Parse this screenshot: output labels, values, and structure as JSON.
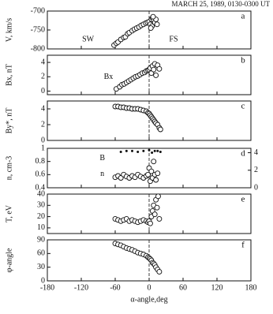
{
  "chart_data": [
    {
      "type": "scatter",
      "title": "MARCH 25, 1989, 0130-0300 UT",
      "ylabel": "V, km/s",
      "panel_label": "a",
      "annotations": [
        "SW",
        "FS"
      ],
      "xlim": [
        -180,
        180
      ],
      "xticks": [
        -180,
        -120,
        -60,
        0,
        60,
        120,
        180
      ],
      "ylim": [
        -800,
        -700
      ],
      "yticks": [
        -800,
        -750,
        -700
      ],
      "series": [
        {
          "color": "#111",
          "x": [
            -62,
            -58,
            -55,
            -50,
            -45,
            -42,
            -38,
            -35,
            -30,
            -26,
            -22,
            -18,
            -14,
            -10,
            -6,
            -3,
            0,
            2,
            4,
            5,
            6,
            8,
            10,
            12,
            14,
            3,
            7
          ],
          "y": [
            -790,
            -785,
            -782,
            -775,
            -770,
            -768,
            -760,
            -757,
            -752,
            -748,
            -745,
            -742,
            -738,
            -735,
            -732,
            -730,
            -728,
            -735,
            -722,
            -740,
            -718,
            -725,
            -730,
            -722,
            -735,
            -745,
            -715
          ]
        }
      ]
    },
    {
      "type": "scatter",
      "ylabel": "Bx, nT",
      "panel_label": "b",
      "annotations": [
        "Bx"
      ],
      "xlim": [
        -180,
        180
      ],
      "xticks": [
        -180,
        -120,
        -60,
        0,
        60,
        120,
        180
      ],
      "ylim": [
        -0.5,
        5
      ],
      "yticks": [
        0,
        2,
        4
      ],
      "series": [
        {
          "color": "#111",
          "x": [
            -58,
            -52,
            -48,
            -44,
            -40,
            -36,
            -32,
            -28,
            -24,
            -20,
            -16,
            -12,
            -8,
            -5,
            -2,
            0,
            2,
            4,
            6,
            8,
            10,
            12,
            15,
            18
          ],
          "y": [
            0.3,
            0.6,
            0.9,
            1.0,
            1.2,
            1.4,
            1.6,
            1.8,
            2.0,
            2.1,
            2.3,
            2.5,
            2.6,
            2.8,
            2.9,
            3.0,
            3.2,
            2.5,
            3.5,
            3.0,
            3.8,
            2.2,
            3.6,
            3.1
          ]
        }
      ]
    },
    {
      "type": "scatter",
      "ylabel": "By*, nT",
      "panel_label": "c",
      "annotations": [],
      "xlim": [
        -180,
        180
      ],
      "xticks": [
        -180,
        -120,
        -60,
        0,
        60,
        120,
        180
      ],
      "ylim": [
        0,
        5
      ],
      "yticks": [
        0,
        2,
        4
      ],
      "series": [
        {
          "color": "#111",
          "x": [
            -60,
            -55,
            -50,
            -45,
            -40,
            -35,
            -30,
            -25,
            -20,
            -15,
            -10,
            -5,
            -2,
            0,
            2,
            4,
            6,
            8,
            10,
            12,
            15,
            18,
            20
          ],
          "y": [
            4.3,
            4.3,
            4.2,
            4.2,
            4.1,
            4.1,
            4.0,
            4.0,
            4.0,
            3.9,
            3.8,
            3.7,
            3.5,
            3.4,
            3.2,
            3.0,
            2.8,
            2.6,
            2.4,
            2.2,
            2.0,
            1.6,
            1.4
          ]
        }
      ]
    },
    {
      "type": "scatter",
      "ylabel": "n, cm-3",
      "panel_label": "d",
      "annotations": [],
      "xlim": [
        -180,
        180
      ],
      "xticks": [
        -180,
        -120,
        -60,
        0,
        60,
        120,
        180
      ],
      "ylim": [
        0.4,
        1
      ],
      "yticks": [
        0.4,
        0.6,
        0.8,
        1
      ],
      "y2lim": [
        0,
        4.5
      ],
      "y2ticks": [
        0,
        2,
        4
      ],
      "series": [
        {
          "name": "B",
          "color": "#111",
          "axis": "y2",
          "x": [
            -50,
            -40,
            -30,
            -20,
            -10,
            0,
            5,
            10,
            15,
            20
          ],
          "y": [
            4.1,
            4.2,
            4.2,
            4.1,
            4.2,
            4.3,
            4.0,
            4.2,
            4.2,
            4.1
          ]
        },
        {
          "name": "n",
          "color": "#111",
          "x": [
            -60,
            -55,
            -50,
            -45,
            -40,
            -35,
            -30,
            -25,
            -20,
            -15,
            -10,
            -5,
            -2,
            0,
            2,
            4,
            6,
            8,
            10,
            12,
            15
          ],
          "y": [
            0.56,
            0.58,
            0.55,
            0.6,
            0.57,
            0.55,
            0.58,
            0.56,
            0.6,
            0.57,
            0.55,
            0.58,
            0.6,
            0.7,
            0.5,
            0.65,
            0.55,
            0.8,
            0.6,
            0.52,
            0.62
          ]
        }
      ]
    },
    {
      "type": "scatter",
      "ylabel": "T, eV",
      "panel_label": "e",
      "annotations": [],
      "xlim": [
        -180,
        180
      ],
      "xticks": [
        -180,
        -120,
        -60,
        0,
        60,
        120,
        180
      ],
      "ylim": [
        5,
        40
      ],
      "yticks": [
        10,
        20,
        30,
        40
      ],
      "series": [
        {
          "color": "#111",
          "x": [
            -60,
            -55,
            -50,
            -45,
            -40,
            -35,
            -30,
            -25,
            -20,
            -15,
            -10,
            -5,
            -2,
            0,
            2,
            4,
            6,
            8,
            10,
            12,
            14,
            16,
            18
          ],
          "y": [
            18,
            17,
            16,
            17,
            18,
            16,
            17,
            16,
            15,
            16,
            17,
            16,
            15,
            16,
            14,
            20,
            25,
            30,
            22,
            35,
            28,
            38,
            18
          ]
        }
      ]
    },
    {
      "type": "scatter",
      "ylabel": "φ-angle",
      "panel_label": "f",
      "annotations": [],
      "xlabel": "α-angle,deg",
      "xlim": [
        -180,
        180
      ],
      "xticks": [
        -180,
        -120,
        -60,
        0,
        60,
        120,
        180
      ],
      "ylim": [
        0,
        90
      ],
      "yticks": [
        0,
        30,
        60,
        90
      ],
      "series": [
        {
          "color": "#111",
          "x": [
            -60,
            -55,
            -50,
            -45,
            -40,
            -35,
            -30,
            -25,
            -20,
            -15,
            -10,
            -5,
            -2,
            0,
            2,
            4,
            6,
            8,
            10,
            12,
            15,
            18
          ],
          "y": [
            82,
            80,
            78,
            75,
            72,
            70,
            68,
            65,
            62,
            60,
            58,
            55,
            52,
            50,
            48,
            45,
            40,
            38,
            35,
            30,
            25,
            20
          ]
        }
      ]
    }
  ]
}
